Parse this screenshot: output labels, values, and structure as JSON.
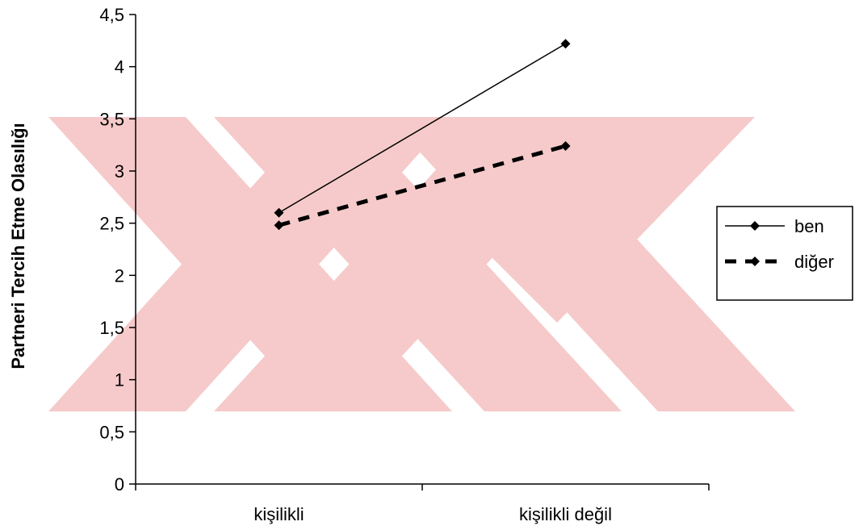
{
  "chart_data": {
    "type": "line",
    "categories": [
      "kişilikli",
      "kişilikli değil"
    ],
    "series": [
      {
        "name": "ben",
        "values": [
          2.6,
          4.22
        ],
        "style": "solid"
      },
      {
        "name": "diğer",
        "values": [
          2.48,
          3.24
        ],
        "style": "dashed"
      }
    ],
    "ylabel": "Partneri Tercih Etme Olasılığı",
    "xlabel": "",
    "ylim": [
      0,
      4.5
    ],
    "yticks": [
      "0",
      "0,5",
      "1",
      "1,5",
      "2",
      "2,5",
      "3",
      "3,5",
      "4",
      "4,5"
    ],
    "legend_position": "right",
    "grid": false,
    "watermark_color": "#f6caca",
    "line_color": "#000000"
  }
}
